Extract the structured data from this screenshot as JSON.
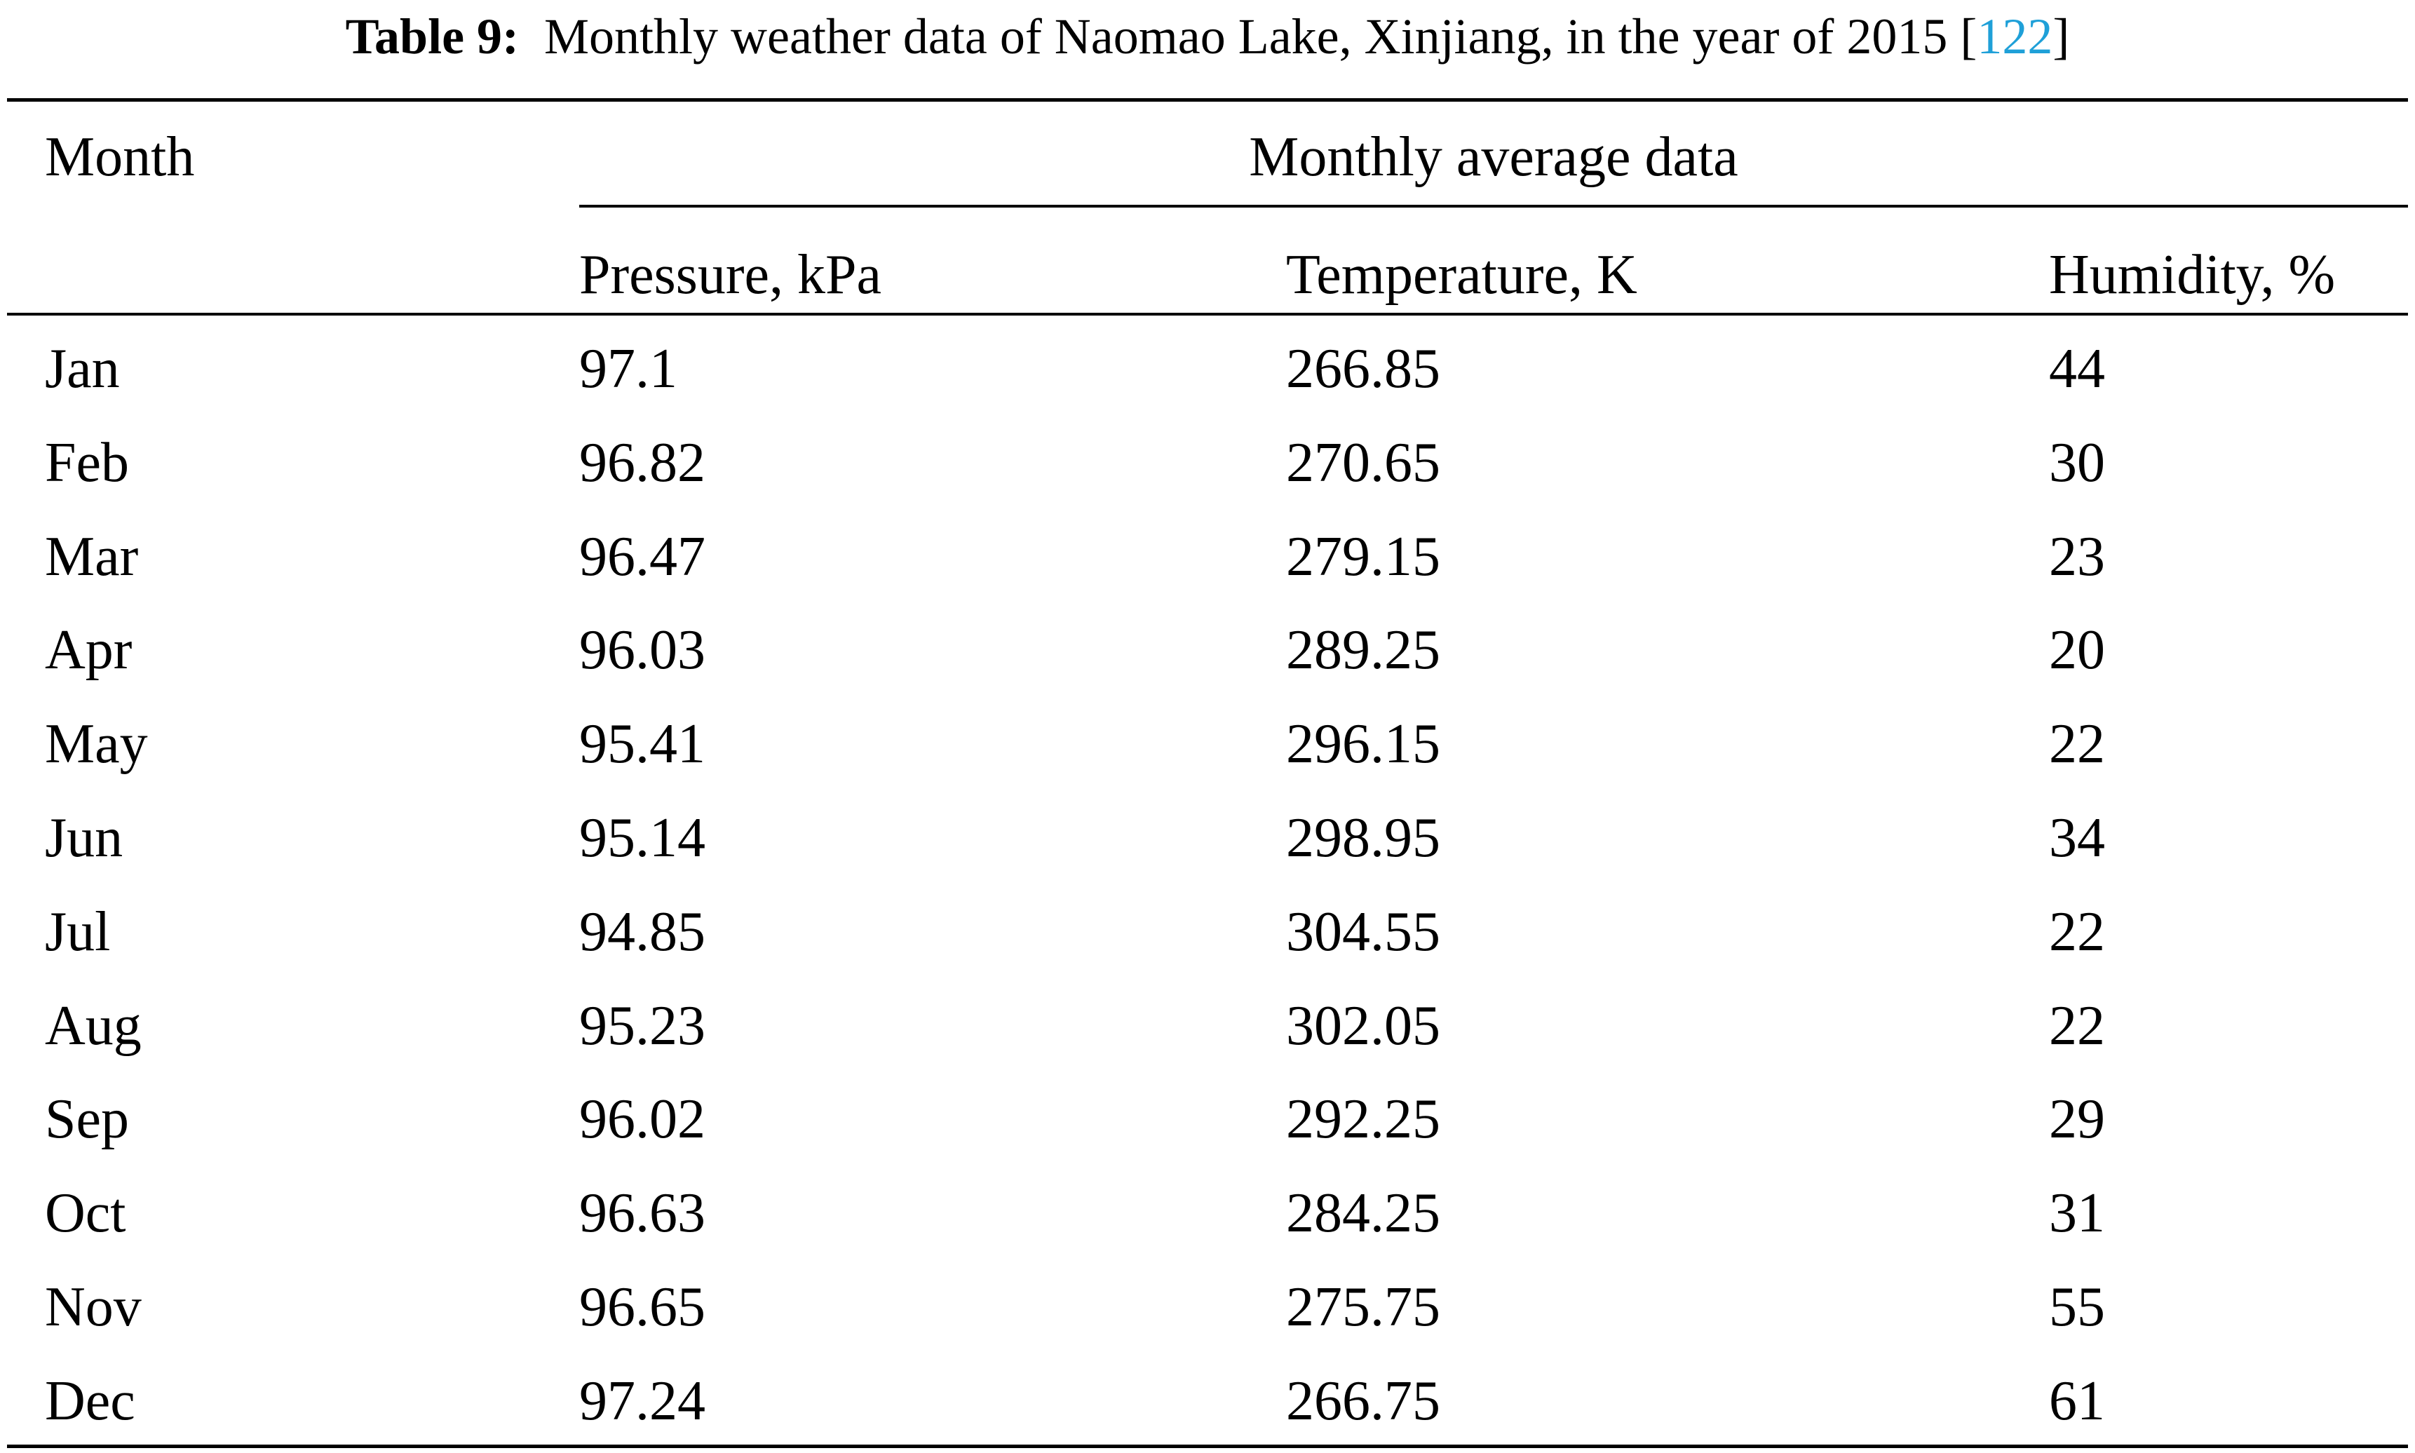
{
  "caption": {
    "label": "Table 9:",
    "text": "Monthly weather data of Naomao Lake, Xinjiang, in the year of 2015 [",
    "ref": "122",
    "close": "]"
  },
  "header": {
    "month": "Month",
    "group": "Monthly average data",
    "pressure": "Pressure, kPa",
    "temperature": "Temperature, K",
    "humidity": "Humidity, %"
  },
  "rows": [
    {
      "month": "Jan",
      "pressure": "97.1",
      "temperature": "266.85",
      "humidity": "44"
    },
    {
      "month": "Feb",
      "pressure": "96.82",
      "temperature": "270.65",
      "humidity": "30"
    },
    {
      "month": "Mar",
      "pressure": "96.47",
      "temperature": "279.15",
      "humidity": "23"
    },
    {
      "month": "Apr",
      "pressure": "96.03",
      "temperature": "289.25",
      "humidity": "20"
    },
    {
      "month": "May",
      "pressure": "95.41",
      "temperature": "296.15",
      "humidity": "22"
    },
    {
      "month": "Jun",
      "pressure": "95.14",
      "temperature": "298.95",
      "humidity": "34"
    },
    {
      "month": "Jul",
      "pressure": "94.85",
      "temperature": "304.55",
      "humidity": "22"
    },
    {
      "month": "Aug",
      "pressure": "95.23",
      "temperature": "302.05",
      "humidity": "22"
    },
    {
      "month": "Sep",
      "pressure": "96.02",
      "temperature": "292.25",
      "humidity": "29"
    },
    {
      "month": "Oct",
      "pressure": "96.63",
      "temperature": "284.25",
      "humidity": "31"
    },
    {
      "month": "Nov",
      "pressure": "96.65",
      "temperature": "275.75",
      "humidity": "55"
    },
    {
      "month": "Dec",
      "pressure": "97.24",
      "temperature": "266.75",
      "humidity": "61"
    }
  ],
  "colors": {
    "text": "#000000",
    "reference_link": "#1fa0d8"
  }
}
